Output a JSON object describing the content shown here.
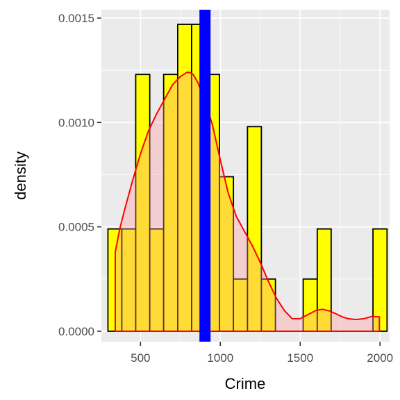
{
  "chart_data": {
    "type": "histogram",
    "xlabel": "Crime",
    "ylabel": "density",
    "xlim": [
      255,
      2060
    ],
    "ylim": [
      -5e-05,
      0.00154
    ],
    "x_ticks": [
      500,
      1000,
      1500,
      2000
    ],
    "x_tick_labels": [
      "500",
      "1000",
      "1500",
      "2000"
    ],
    "y_ticks": [
      0,
      0.0005,
      0.001,
      0.0015
    ],
    "y_tick_labels": [
      "0.0000",
      "0.0005",
      "0.0010",
      "0.0015"
    ],
    "grid": true,
    "bins": [
      {
        "start": 296,
        "end": 383,
        "density": 0.00049
      },
      {
        "start": 383,
        "end": 470,
        "density": 0.00049
      },
      {
        "start": 470,
        "end": 558,
        "density": 0.00123
      },
      {
        "start": 558,
        "end": 645,
        "density": 0.00049
      },
      {
        "start": 645,
        "end": 733,
        "density": 0.00123
      },
      {
        "start": 733,
        "end": 820,
        "density": 0.00147
      },
      {
        "start": 820,
        "end": 907,
        "density": 0.00147
      },
      {
        "start": 907,
        "end": 995,
        "density": 0.00123
      },
      {
        "start": 995,
        "end": 1082,
        "density": 0.00074
      },
      {
        "start": 1082,
        "end": 1170,
        "density": 0.00025
      },
      {
        "start": 1170,
        "end": 1257,
        "density": 0.00098
      },
      {
        "start": 1257,
        "end": 1345,
        "density": 0.00025
      },
      {
        "start": 1345,
        "end": 1432,
        "density": 0
      },
      {
        "start": 1432,
        "end": 1519,
        "density": 0
      },
      {
        "start": 1519,
        "end": 1607,
        "density": 0.00025
      },
      {
        "start": 1607,
        "end": 1694,
        "density": 0.00049
      },
      {
        "start": 1694,
        "end": 1782,
        "density": 0
      },
      {
        "start": 1782,
        "end": 1869,
        "density": 0
      },
      {
        "start": 1869,
        "end": 1956,
        "density": 0
      },
      {
        "start": 1956,
        "end": 2044,
        "density": 0.00049
      }
    ],
    "density_curve": {
      "x": [
        342,
        370,
        400,
        450,
        500,
        550,
        600,
        650,
        700,
        750,
        790,
        810,
        830,
        860,
        900,
        950,
        1000,
        1050,
        1100,
        1150,
        1200,
        1250,
        1300,
        1350,
        1400,
        1450,
        1500,
        1550,
        1600,
        1640,
        1680,
        1720,
        1760,
        1800,
        1850,
        1900,
        1950,
        1996
      ],
      "y": [
        0.00038,
        0.00049,
        0.00058,
        0.00072,
        0.00085,
        0.00096,
        0.00104,
        0.00111,
        0.00118,
        0.00122,
        0.00124,
        0.00124,
        0.00123,
        0.00119,
        0.00111,
        0.00099,
        0.00082,
        0.00066,
        0.00055,
        0.00048,
        0.00041,
        0.00033,
        0.00024,
        0.00016,
        0.0001,
        6e-05,
        6e-05,
        8e-05,
        0.0001,
        0.000105,
        9.8e-05,
        8.5e-05,
        7e-05,
        6e-05,
        5.6e-05,
        6e-05,
        7.1e-05,
        6.9e-05
      ]
    },
    "vline": {
      "x": 904
    },
    "colors": {
      "panel_bg": "#ebebeb",
      "grid": "#ffffff",
      "bar_fill": "#ffff00",
      "bar_border": "#000000",
      "density_line": "#ff0000",
      "density_fill": "#ff9999",
      "vline": "#0000ff",
      "tick_text": "#4d4d4d",
      "tick_mark": "#333333"
    }
  }
}
